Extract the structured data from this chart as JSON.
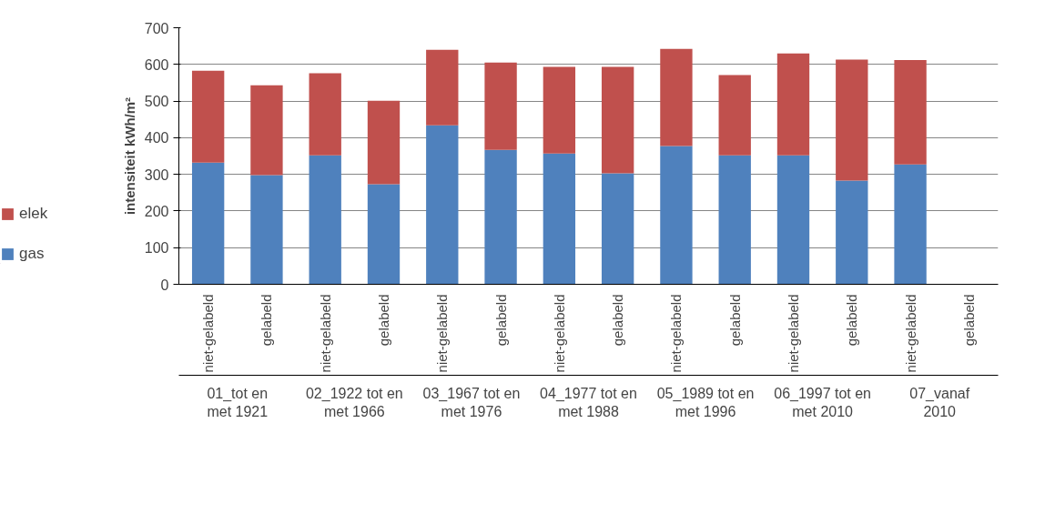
{
  "chart_data": {
    "type": "bar",
    "stacked": true,
    "ylabel": "intensiteit kWh/m²",
    "categories": [
      "niet-gelabeld",
      "gelabeld",
      "niet-gelabeld",
      "gelabeld",
      "niet-gelabeld",
      "gelabeld",
      "niet-gelabeld",
      "gelabeld",
      "niet-gelabeld",
      "gelabeld",
      "niet-gelabeld",
      "gelabeld",
      "niet-gelabeld",
      "gelabeld"
    ],
    "series": [
      {
        "name": "gas",
        "color": "#4f81bd",
        "values": [
          332,
          298,
          352,
          273,
          434,
          367,
          357,
          303,
          377,
          352,
          352,
          283,
          327,
          null
        ]
      },
      {
        "name": "elek",
        "color": "#c0504d",
        "values": [
          251,
          245,
          224,
          228,
          206,
          238,
          236,
          290,
          265,
          219,
          278,
          330,
          285,
          null
        ]
      }
    ],
    "annotations": [
      "01_tot en met 1921",
      "02_1922 tot en met 1966",
      "03_1967 tot en met 1976",
      "04_1977 tot en met 1988",
      "05_1989 tot en met 1996",
      "06_1997 tot en met 2010",
      "07_vanaf 2010"
    ],
    "ylim": [
      0,
      700
    ],
    "yticks": [
      0,
      100,
      200,
      300,
      400,
      500,
      600,
      700
    ],
    "grid": "y",
    "legend": "bottom left"
  }
}
